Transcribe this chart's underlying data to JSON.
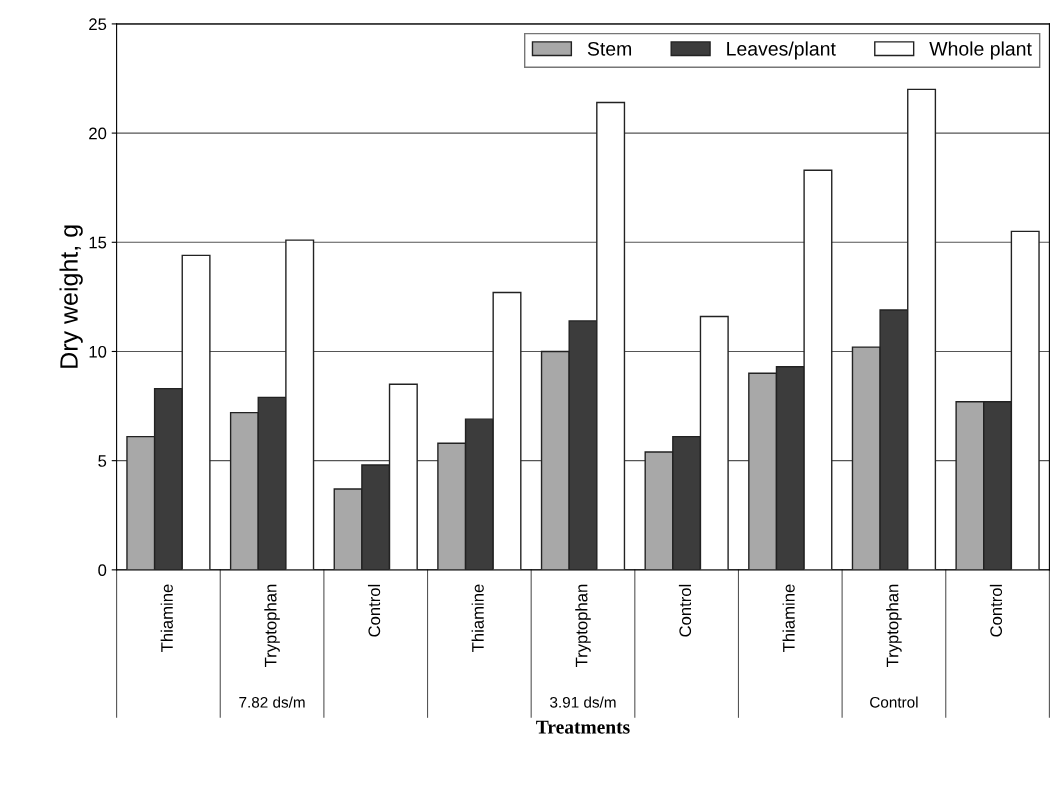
{
  "chart_data": {
    "type": "bar",
    "xlabel": "Treatments",
    "ylabel": "Dry weight, g",
    "categories": [
      "Thiamine",
      "Tryptophan",
      "Control",
      "Thiamine",
      "Tryptophan",
      "Control",
      "Thiamine",
      "Tryptophan",
      "Control"
    ],
    "annotations": [
      "7.82 ds/m",
      "3.91 ds/m",
      "Control"
    ],
    "series": [
      {
        "name": "Stem",
        "color": "#a8a8a8",
        "values": [
          6.1,
          7.2,
          3.7,
          5.8,
          10.0,
          5.4,
          9.0,
          10.2,
          7.7
        ]
      },
      {
        "name": "Leaves/plant",
        "color": "#3c3c3c",
        "values": [
          8.3,
          7.9,
          4.8,
          6.9,
          11.4,
          6.1,
          9.3,
          11.9,
          7.7
        ]
      },
      {
        "name": "Whole plant",
        "color": "#ffffff",
        "values": [
          14.4,
          15.1,
          8.5,
          12.7,
          21.4,
          11.6,
          18.3,
          22.0,
          15.5
        ]
      }
    ],
    "ylim": [
      0,
      25
    ],
    "yticks": [
      0,
      5,
      10,
      15,
      20,
      25
    ],
    "grid": "y",
    "legend": "top right"
  }
}
